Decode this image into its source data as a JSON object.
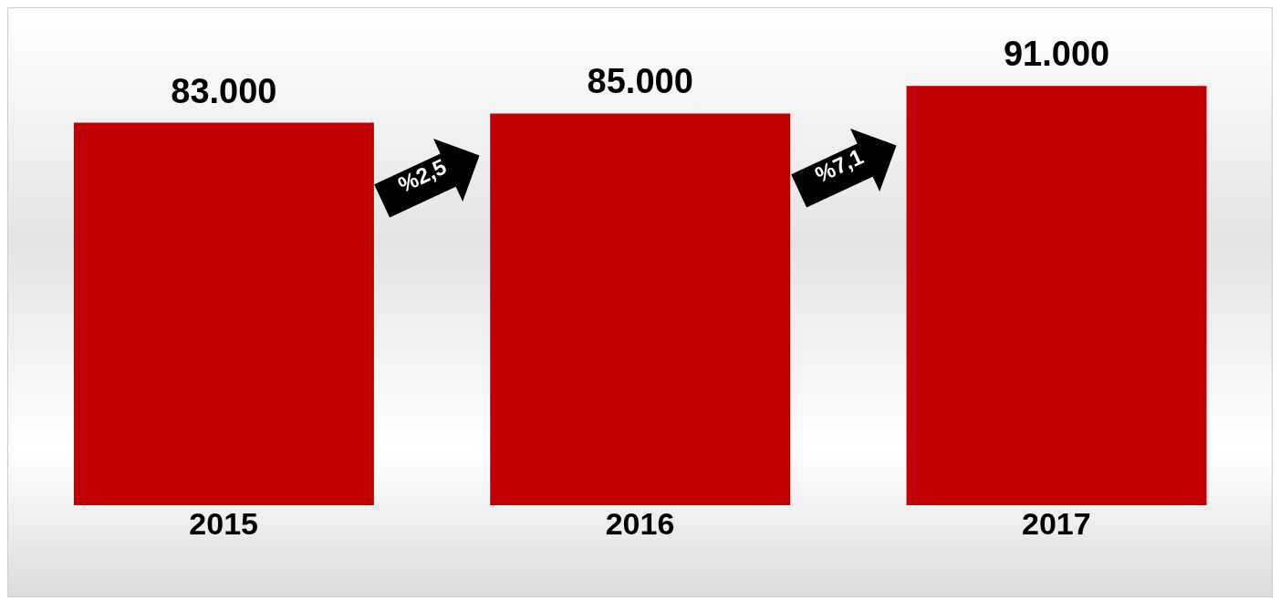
{
  "chart_data": {
    "type": "bar",
    "categories": [
      "2015",
      "2016",
      "2017"
    ],
    "values": [
      83000,
      85000,
      91000
    ],
    "value_labels": [
      "83.000",
      "85.000",
      "91.000"
    ],
    "color": "#c00000",
    "tick_labels": "x",
    "annotations": [
      "%2,5",
      "%7,1"
    ]
  }
}
